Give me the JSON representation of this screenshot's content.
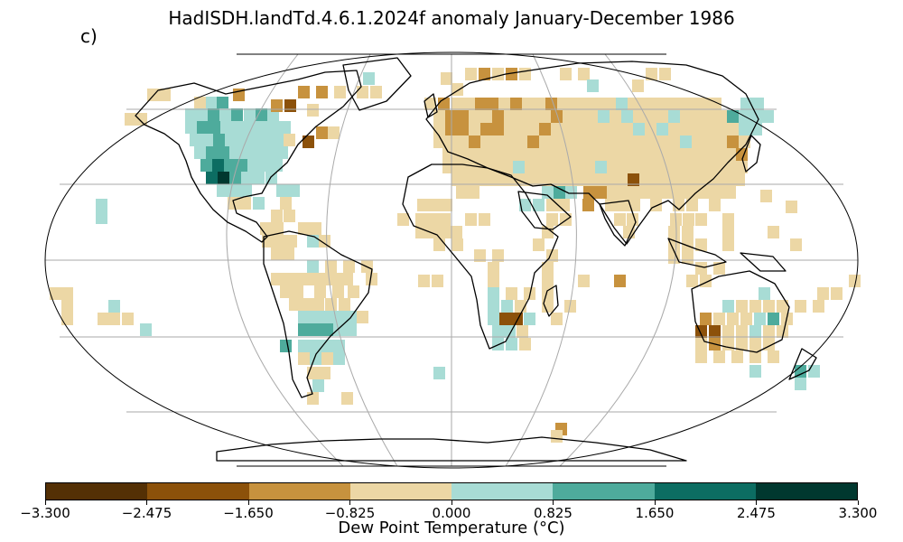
{
  "map": {
    "title": "HadISDH.landTd.4.6.1.2024f anomaly January-December 1986",
    "panel_label": "c)",
    "projection": "Robinson",
    "gridlines": true
  },
  "colorbar": {
    "label": "Dew Point Temperature (°C)",
    "ticks": [
      "−3.300",
      "−2.475",
      "−1.650",
      "−0.825",
      "0.000",
      "0.825",
      "1.650",
      "2.475",
      "3.300"
    ],
    "colors": [
      "#543005",
      "#8c510a",
      "#c7923e",
      "#ecd7a5",
      "#a8dcd5",
      "#4eab9c",
      "#0c6d62",
      "#00382f"
    ]
  }
}
